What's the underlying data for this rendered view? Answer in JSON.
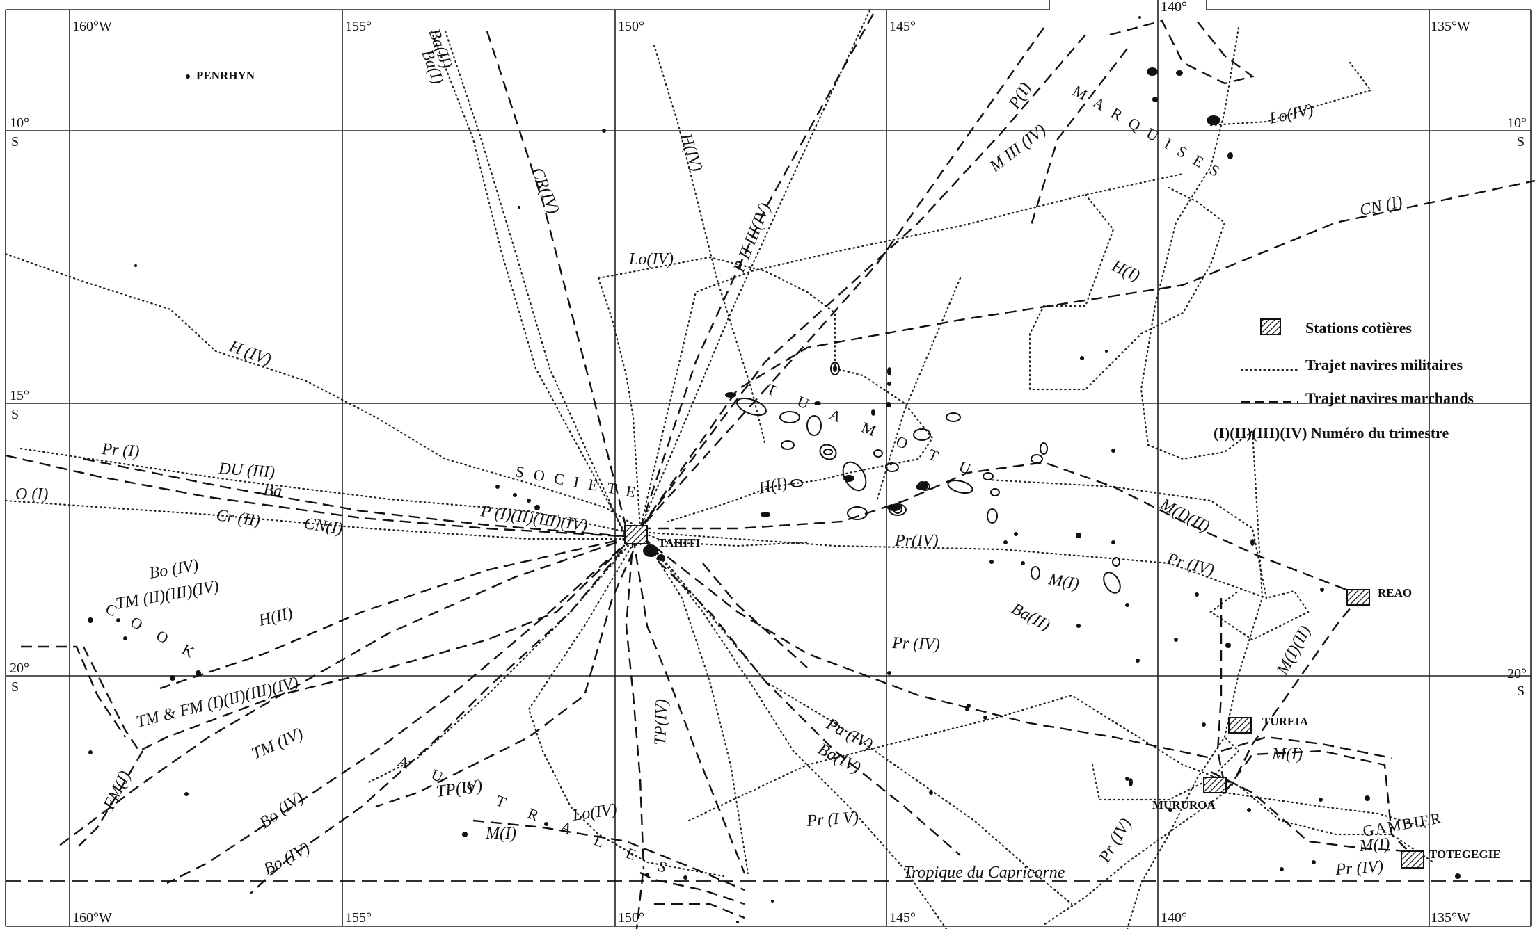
{
  "longitudes": {
    "top": [
      "160°W",
      "155°",
      "150°",
      "145°",
      "140°",
      "135°W"
    ],
    "bottom": [
      "160°W",
      "155°",
      "150°",
      "145°",
      "140°",
      "135°W"
    ]
  },
  "latitudes": {
    "left": [
      "10°",
      "15°",
      "20°"
    ],
    "right": [
      "10°",
      "20°"
    ],
    "hemisphere": "S"
  },
  "tropic_label": "Tropique du Capricorne",
  "islands": {
    "penrhyn": "PENRHYN",
    "tahiti": "TAHITI"
  },
  "archipelagos": {
    "societe": "SOCIETE",
    "tuamotu": "TUAMOTU",
    "marquises": "MARQUISES",
    "australes": "AUSTRALES",
    "cook": "COOK",
    "gambier": "GAMBIER"
  },
  "stations": [
    {
      "name": "TAHITI"
    },
    {
      "name": "REAO"
    },
    {
      "name": "TUREIA"
    },
    {
      "name": "MURUROA"
    },
    {
      "name": "TOTEGEGIE"
    }
  ],
  "route_labels": [
    "Ba(II)",
    "Ba(I)",
    "CR(IV)",
    "H(IV)",
    "P II III(IV)",
    "Lo(IV)",
    "P(I)",
    "M III (IV)",
    "Lo(IV)",
    "CN (I)",
    "H(I)",
    "H (IV)",
    "Pr (I)",
    "DU (III)",
    "Ba",
    "O (I)",
    "Cr (II)",
    "CN(I)",
    "P (I)(II)(III)(IV)",
    "H(I)",
    "Pr(IV)",
    "M(I)(II)",
    "Pr (IV)",
    "M(I)",
    "Ba(II)",
    "Bo (IV)",
    "TM (II)(III)(IV)",
    "H(II)",
    "TM & FM (I)(II)(III)(IV)",
    "TM (IV)",
    "FM(I)",
    "Pr (IV)",
    "TP(IV)",
    "Pa (IV)",
    "Ba(IV)",
    "Bo (IV)",
    "TP(IV)",
    "Lo(IV)",
    "M(I)",
    "Bo (IV)",
    "Pr (I V)",
    "Pr (IV)",
    "M(I)",
    "M(I)(II)",
    "M(I)",
    "Pr (IV)"
  ],
  "legend": {
    "stations": "Stations cotières",
    "military": "Trajet navires militaires",
    "merchant": "Trajet navires marchands",
    "quarter": "(I)(II)(III)(IV) Numéro du trimestre"
  }
}
